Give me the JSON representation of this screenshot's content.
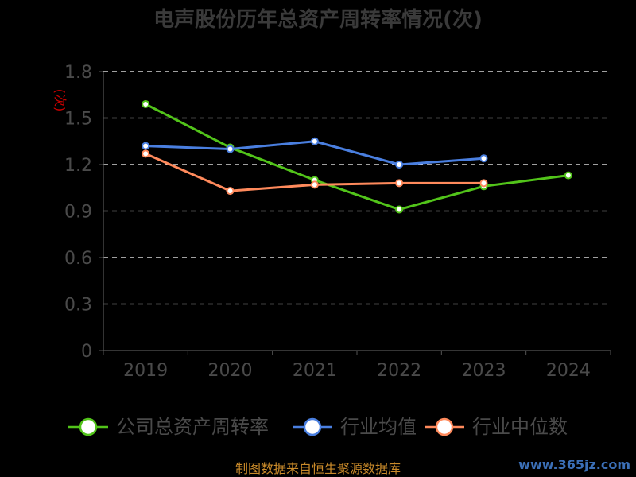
{
  "chart_data": {
    "type": "line",
    "title": "电声股份历年总资产周转率情况(次)",
    "ylabel": "(次)",
    "xlabel": "",
    "categories": [
      "2019",
      "2020",
      "2021",
      "2022",
      "2023",
      "2024"
    ],
    "ylim": [
      0,
      1.8
    ],
    "yticks": [
      "0",
      "0.3",
      "0.6",
      "0.9",
      "1.2",
      "1.5",
      "1.8"
    ],
    "grid": true,
    "legend_position": "bottom",
    "series": [
      {
        "name": "公司总资产周转率",
        "color": "#52c41a",
        "values": [
          1.59,
          1.31,
          1.1,
          0.91,
          1.06,
          1.13
        ]
      },
      {
        "name": "行业均值",
        "color": "#4a7fe0",
        "values": [
          1.32,
          1.3,
          1.35,
          1.2,
          1.24,
          null
        ]
      },
      {
        "name": "行业中位数",
        "color": "#ff8a5c",
        "values": [
          1.27,
          1.03,
          1.07,
          1.08,
          1.08,
          null
        ]
      }
    ]
  },
  "footer": {
    "source": "制图数据来自恒生聚源数据库"
  },
  "watermark": "www.365jz.com"
}
